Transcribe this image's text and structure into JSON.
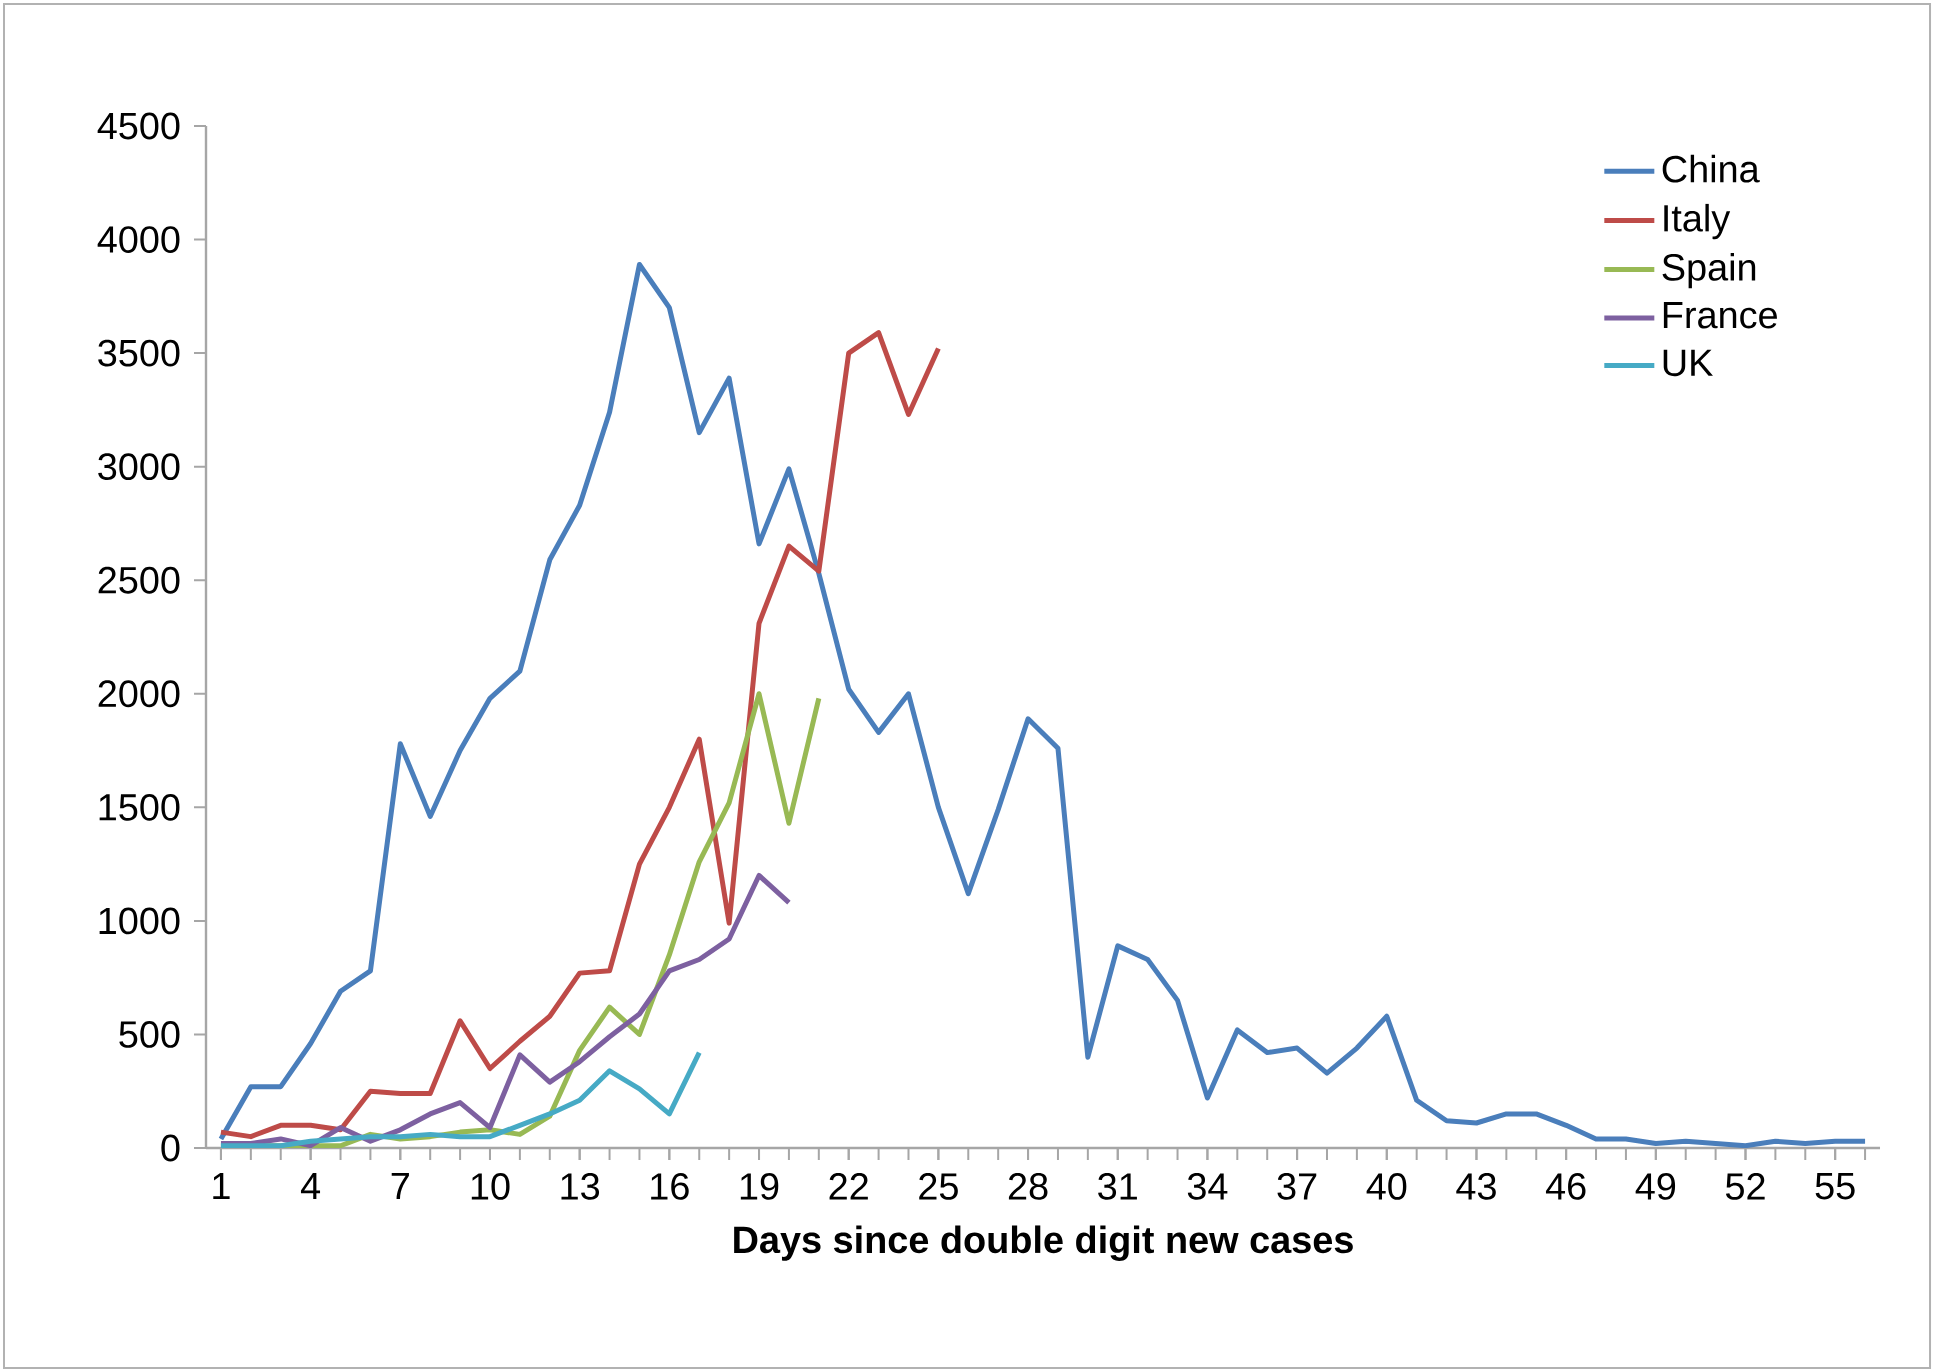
{
  "chart_data": {
    "type": "line",
    "xlabel": "Days since double digit new cases",
    "xlim": [
      0.5,
      56.5
    ],
    "xticks": [
      1,
      4,
      7,
      10,
      13,
      16,
      19,
      22,
      25,
      28,
      31,
      34,
      37,
      40,
      43,
      46,
      49,
      52,
      55
    ],
    "ylim": [
      0,
      4500
    ],
    "yticks": [
      0,
      500,
      1000,
      1500,
      2000,
      2500,
      3000,
      3500,
      4000,
      4500
    ],
    "grid": false,
    "legend": "top right",
    "marker": "none",
    "line_style": "solid",
    "series": [
      {
        "name": "China",
        "color": "#4a7ebb",
        "x": [
          1,
          2,
          3,
          4,
          5,
          6,
          7,
          8,
          9,
          10,
          11,
          12,
          13,
          14,
          15,
          16,
          17,
          18,
          19,
          20,
          21,
          22,
          23,
          24,
          25,
          26,
          27,
          28,
          29,
          30,
          31,
          32,
          33,
          34,
          35,
          36,
          37,
          38,
          39,
          40,
          41,
          42,
          43,
          44,
          45,
          46,
          47,
          48,
          49,
          50,
          51,
          52,
          53,
          54,
          55,
          56
        ],
        "values": [
          40,
          270,
          270,
          460,
          690,
          780,
          1780,
          1460,
          1750,
          1980,
          2100,
          2590,
          2830,
          3240,
          3890,
          3700,
          3150,
          3390,
          2660,
          2990,
          2530,
          2020,
          1830,
          2000,
          1500,
          1120,
          1490,
          1890,
          1760,
          400,
          890,
          830,
          650,
          220,
          520,
          420,
          440,
          330,
          440,
          580,
          210,
          120,
          110,
          150,
          150,
          100,
          40,
          40,
          20,
          30,
          20,
          10,
          30,
          20,
          30,
          30
        ]
      },
      {
        "name": "Italy",
        "color": "#be4b48",
        "x": [
          1,
          2,
          3,
          4,
          5,
          6,
          7,
          8,
          9,
          10,
          11,
          12,
          13,
          14,
          15,
          16,
          17,
          18,
          19,
          20,
          21,
          22,
          23,
          24,
          25
        ],
        "values": [
          70,
          50,
          100,
          100,
          80,
          250,
          240,
          240,
          560,
          350,
          470,
          580,
          770,
          780,
          1250,
          1500,
          1800,
          990,
          2310,
          2650,
          2540,
          3500,
          3590,
          3230,
          3520
        ]
      },
      {
        "name": "Spain",
        "color": "#98b954",
        "x": [
          1,
          2,
          3,
          4,
          5,
          6,
          7,
          8,
          9,
          10,
          11,
          12,
          13,
          14,
          15,
          16,
          17,
          18,
          19,
          20,
          21
        ],
        "values": [
          10,
          10,
          10,
          10,
          10,
          60,
          40,
          50,
          70,
          80,
          60,
          140,
          430,
          620,
          500,
          850,
          1260,
          1520,
          2000,
          1430,
          1980
        ]
      },
      {
        "name": "France",
        "color": "#7d60a0",
        "x": [
          1,
          2,
          3,
          4,
          5,
          6,
          7,
          8,
          9,
          10,
          11,
          12,
          13,
          14,
          15,
          16,
          17,
          18,
          19,
          20
        ],
        "values": [
          20,
          20,
          40,
          10,
          90,
          30,
          80,
          150,
          200,
          90,
          410,
          290,
          380,
          490,
          590,
          780,
          830,
          920,
          1200,
          1080
        ]
      },
      {
        "name": "UK",
        "color": "#46aac5",
        "x": [
          1,
          2,
          3,
          4,
          5,
          6,
          7,
          8,
          9,
          10,
          11,
          12,
          13,
          14,
          15,
          16,
          17
        ],
        "values": [
          10,
          10,
          10,
          30,
          40,
          50,
          50,
          60,
          50,
          50,
          100,
          150,
          210,
          340,
          260,
          150,
          420
        ]
      }
    ]
  }
}
